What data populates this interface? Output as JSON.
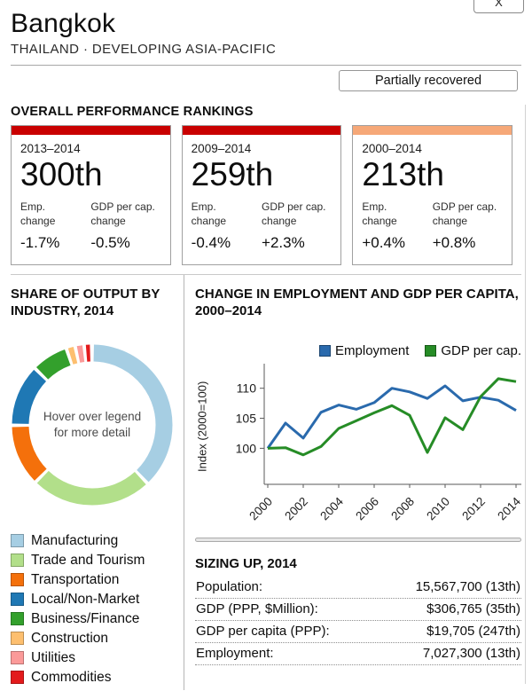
{
  "window": {
    "close_label": "X"
  },
  "header": {
    "title": "Bangkok",
    "subtitle": "THAILAND · DEVELOPING ASIA-PACIFIC",
    "status_label": "Partially recovered"
  },
  "rankings": {
    "heading": "OVERALL PERFORMANCE RANKINGS",
    "cards": [
      {
        "period": "2013–2014",
        "rank": "300th",
        "bar_color": "#c90000",
        "emp_label": "Emp. change",
        "emp_change": "-1.7%",
        "gdp_label": "GDP per cap. change",
        "gdp_change": "-0.5%"
      },
      {
        "period": "2009–2014",
        "rank": "259th",
        "bar_color": "#c90000",
        "emp_label": "Emp. change",
        "emp_change": "-0.4%",
        "gdp_label": "GDP per cap. change",
        "gdp_change": "+2.3%"
      },
      {
        "period": "2000–2014",
        "rank": "213th",
        "bar_color": "#f6a878",
        "emp_label": "Emp. change",
        "emp_change": "+0.4%",
        "gdp_label": "GDP per cap. change",
        "gdp_change": "+0.8%"
      }
    ]
  },
  "chart_data": [
    {
      "type": "pie",
      "donut": true,
      "title": "SHARE OF OUTPUT BY INDUSTRY, 2014",
      "center_note": "Hover over legend for more detail",
      "legend_position": "bottom",
      "slices": [
        {
          "label": "Manufacturing",
          "value": 38.0,
          "color": "#a6cee3"
        },
        {
          "label": "Trade and Tourism",
          "value": 24.5,
          "color": "#b2df8a"
        },
        {
          "label": "Transportation",
          "value": 12.5,
          "color": "#f4700b"
        },
        {
          "label": "Local/Non-Market",
          "value": 12.5,
          "color": "#1f78b4"
        },
        {
          "label": "Business/Finance",
          "value": 7.4,
          "color": "#33a02c"
        },
        {
          "label": "Construction",
          "value": 1.8,
          "color": "#fdbf6f"
        },
        {
          "label": "Utilities",
          "value": 1.8,
          "color": "#fb9a99"
        },
        {
          "label": "Commodities",
          "value": 1.5,
          "color": "#e31a1c"
        }
      ]
    },
    {
      "type": "line",
      "title": "CHANGE IN EMPLOYMENT AND GDP PER CAPITA, 2000–2014",
      "ylabel": "Index (2000=100)",
      "xlim": [
        2000,
        2014
      ],
      "ylim": [
        94,
        113.5
      ],
      "yticks": [
        100,
        105,
        110
      ],
      "x_ticks": [
        2000,
        2002,
        2004,
        2006,
        2008,
        2010,
        2012,
        2014
      ],
      "x": [
        2000,
        2001,
        2002,
        2003,
        2004,
        2005,
        2006,
        2007,
        2008,
        2009,
        2010,
        2011,
        2012,
        2013,
        2014
      ],
      "legend_position": "top-right",
      "grid": false,
      "series": [
        {
          "name": "Employment",
          "color": "#2a6aad",
          "values": [
            100,
            104.2,
            101.7,
            106.0,
            107.2,
            106.5,
            107.6,
            110.0,
            109.4,
            108.3,
            110.4,
            107.9,
            108.5,
            108.0,
            106.3
          ]
        },
        {
          "name": "GDP per cap.",
          "color": "#268c26",
          "values": [
            100,
            100.1,
            98.9,
            100.3,
            103.3,
            104.6,
            105.9,
            107.1,
            105.5,
            99.3,
            105.1,
            103.1,
            108.6,
            111.6,
            111.1
          ]
        }
      ]
    }
  ],
  "sizing": {
    "heading": "SIZING UP, 2014",
    "rows": [
      {
        "label": "Population:",
        "value": "15,567,700 (13th)"
      },
      {
        "label": "GDP (PPP, $Million):",
        "value": "$306,765 (35th)"
      },
      {
        "label": "GDP per capita (PPP):",
        "value": "$19,705 (247th)"
      },
      {
        "label": "Employment:",
        "value": "7,027,300 (13th)"
      }
    ]
  }
}
